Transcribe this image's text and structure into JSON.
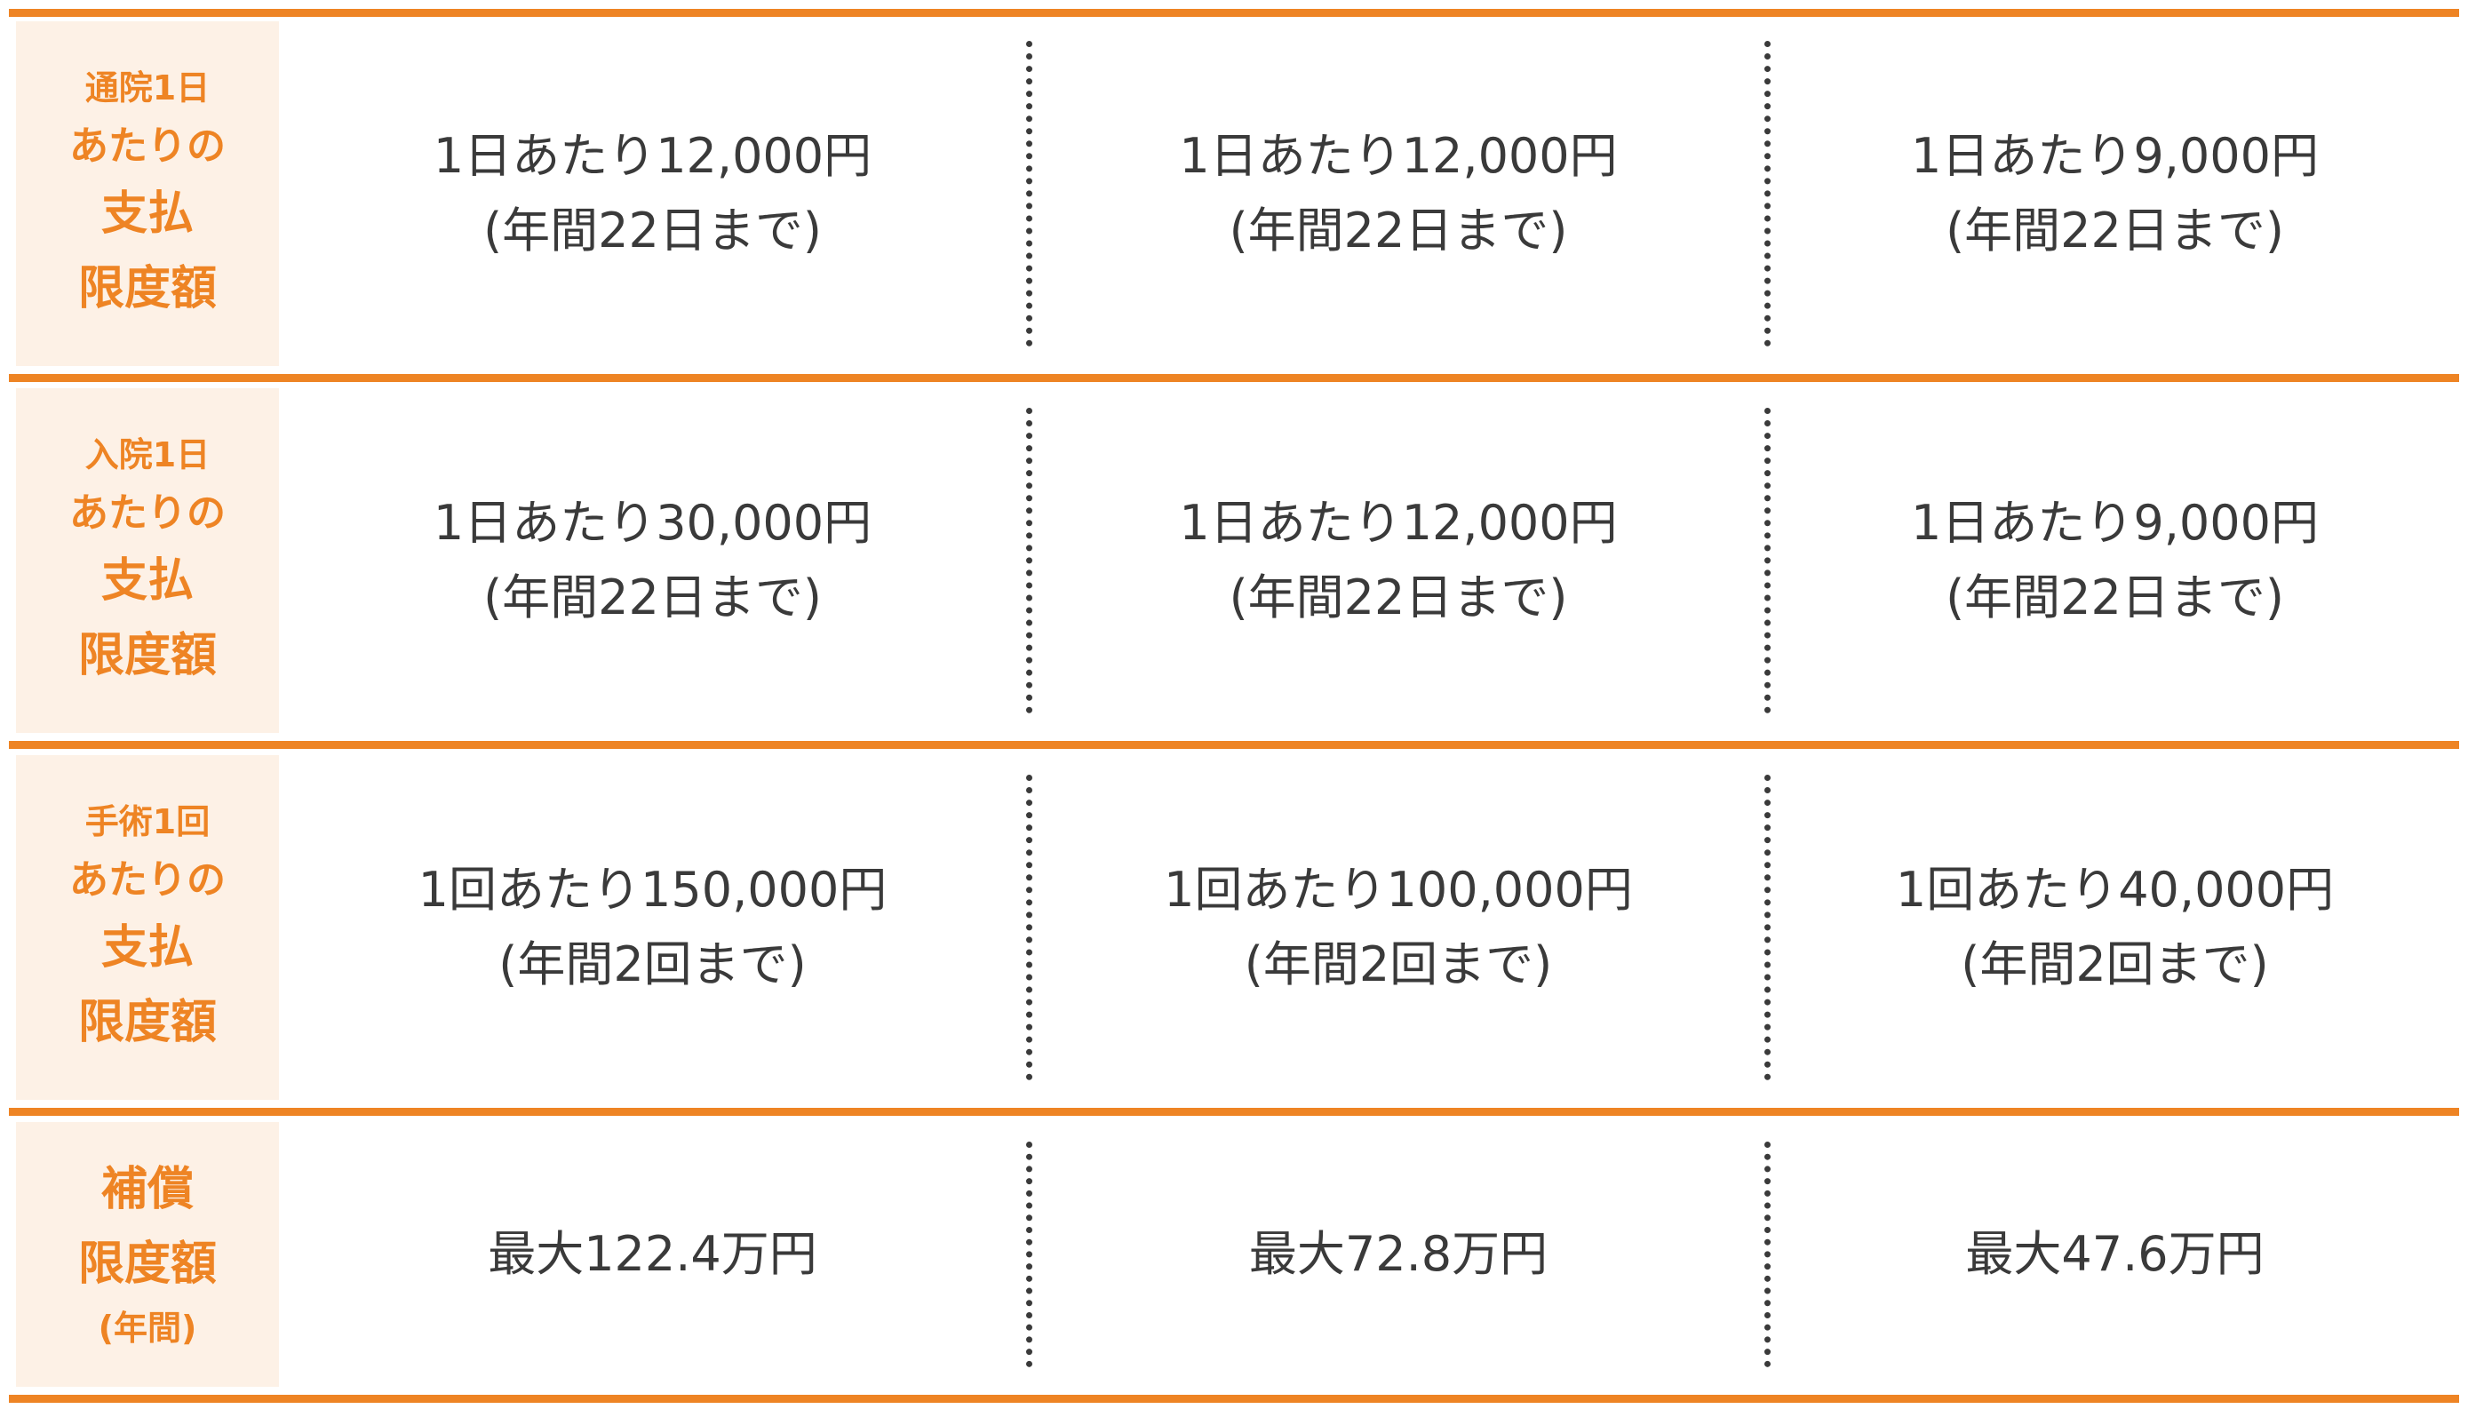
{
  "accent_color": "#ee8424",
  "header_bg_color": "#fdf1e6",
  "rows": [
    {
      "header": [
        "通院1日",
        "あたりの",
        "支払",
        "限度額"
      ],
      "cells": [
        {
          "line1": "1日あたり12,000円",
          "line2": "(年間22日まで)"
        },
        {
          "line1": "1日あたり12,000円",
          "line2": "(年間22日まで)"
        },
        {
          "line1": "1日あたり9,000円",
          "line2": "(年間22日まで)"
        }
      ]
    },
    {
      "header": [
        "入院1日",
        "あたりの",
        "支払",
        "限度額"
      ],
      "cells": [
        {
          "line1": "1日あたり30,000円",
          "line2": "(年間22日まで)"
        },
        {
          "line1": "1日あたり12,000円",
          "line2": "(年間22日まで)"
        },
        {
          "line1": "1日あたり9,000円",
          "line2": "(年間22日まで)"
        }
      ]
    },
    {
      "header": [
        "手術1回",
        "あたりの",
        "支払",
        "限度額"
      ],
      "cells": [
        {
          "line1": "1回あたり150,000円",
          "line2": "(年間2回まで)"
        },
        {
          "line1": "1回あたり100,000円",
          "line2": "(年間2回まで)"
        },
        {
          "line1": "1回あたり40,000円",
          "line2": "(年間2回まで)"
        }
      ]
    },
    {
      "header": [
        "補償",
        "限度額",
        "(年間)"
      ],
      "cells": [
        {
          "line1": "最大122.4万円"
        },
        {
          "line1": "最大72.8万円"
        },
        {
          "line1": "最大47.6万円"
        }
      ]
    }
  ]
}
